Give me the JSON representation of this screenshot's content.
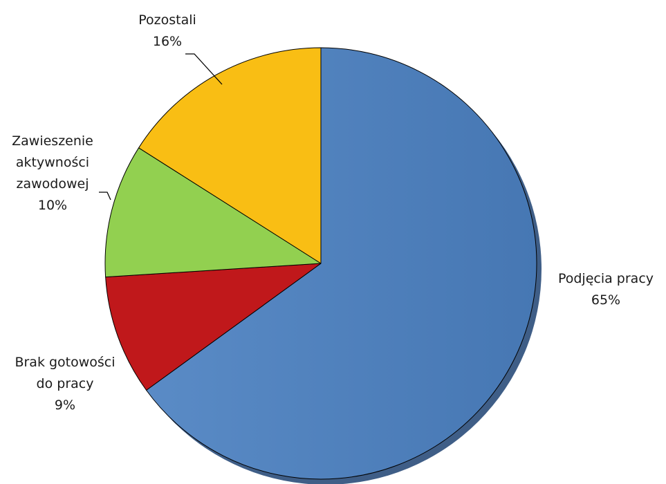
{
  "chart_data": {
    "type": "pie",
    "title": "",
    "slices": [
      {
        "label_lines": [
          "Podjęcia pracy"
        ],
        "percent_label": "65%",
        "value": 65,
        "color": "#4F81BD"
      },
      {
        "label_lines": [
          "Brak gotowości",
          "do pracy"
        ],
        "percent_label": "9%",
        "value": 9,
        "color": "#C0181B"
      },
      {
        "label_lines": [
          "Zawieszenie",
          "aktywności",
          "zawodowej"
        ],
        "percent_label": "10%",
        "value": 10,
        "color": "#92D050"
      },
      {
        "label_lines": [
          "Pozostali"
        ],
        "percent_label": "16%",
        "value": 16,
        "color": "#F9BE14"
      }
    ],
    "start": "12 o'clock",
    "direction": "clockwise",
    "legend": "none",
    "data_labels": "outside, with category name and percentage"
  }
}
